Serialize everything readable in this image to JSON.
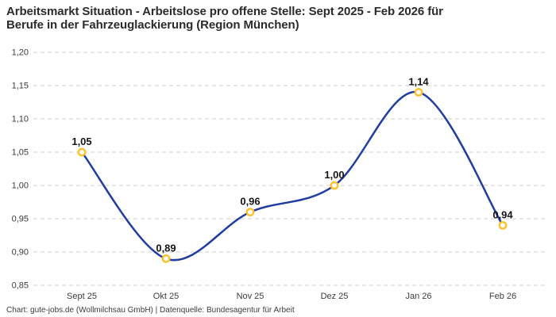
{
  "header": {
    "title_line1": "Arbeitsmarkt Situation - Arbeitslose pro offene Stelle: Sept 2025 - Feb 2026 für",
    "title_line2": "Berufe in der Fahrzeuglackierung (Region München)"
  },
  "footer": {
    "credit": "Chart: gute-jobs.de (Wollmilchsau GmbH) | Datenquelle: Bundesagentur für Arbeit"
  },
  "chart_data": {
    "type": "line",
    "title": "Arbeitsmarkt Situation - Arbeitslose pro offene Stelle: Sept 2025 - Feb 2026 für Berufe in der Fahrzeuglackierung (Region München)",
    "categories": [
      "Sept 25",
      "Okt 25",
      "Nov 25",
      "Dez 25",
      "Jan 26",
      "Feb 26"
    ],
    "values": [
      1.05,
      0.89,
      0.96,
      1.0,
      1.14,
      0.94
    ],
    "value_labels": [
      "1,05",
      "0,89",
      "0,96",
      "1,00",
      "1,14",
      "0,94"
    ],
    "ylim": [
      0.85,
      1.2
    ],
    "y_tick_step": 0.05,
    "y_tick_labels": [
      "1,20",
      "1,15",
      "1,10",
      "1,05",
      "1,00",
      "0,95",
      "0,90",
      "0,85"
    ],
    "xlabel": "",
    "ylabel": "",
    "grid": "horizontal-dashed",
    "legend": "none",
    "curve": "smooth",
    "line_color": "#223da0",
    "marker_stroke_color": "#fdc029",
    "marker_fill_color": "#ffffff",
    "grid_color": "#cccccc"
  }
}
